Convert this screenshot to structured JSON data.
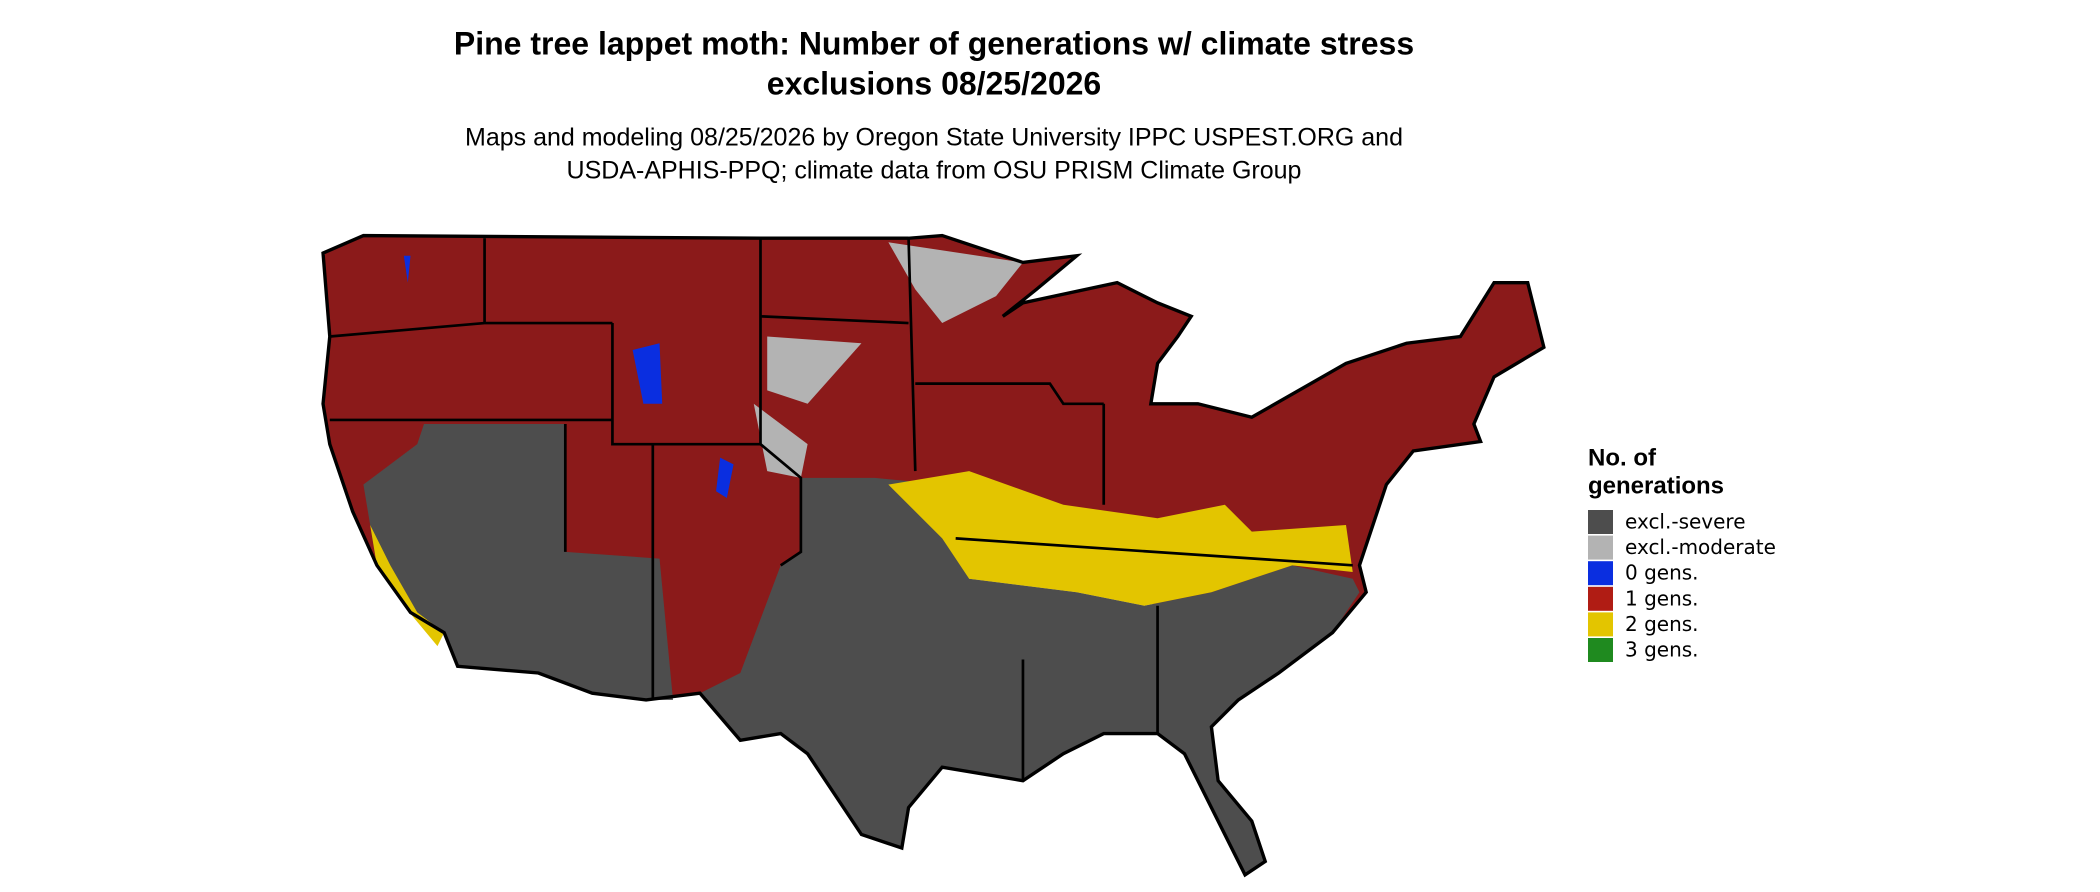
{
  "title": [
    "Pine tree lappet moth: Number of generations w/ climate stress",
    "exclusions 08/25/2026"
  ],
  "subtitle": [
    "Maps and modeling 08/25/2026 by Oregon State University IPPC USPEST.ORG and",
    "USDA-APHIS-PPQ; climate data from OSU PRISM Climate Group"
  ],
  "legend": {
    "title": [
      "No. of",
      "generations"
    ],
    "items": [
      {
        "label": "excl.-severe",
        "color": "#4d4d4d"
      },
      {
        "label": "excl.-moderate",
        "color": "#b3b3b3"
      },
      {
        "label": "0 gens.",
        "color": "#0a2ee0"
      },
      {
        "label": "1 gens.",
        "color": "#b01c14"
      },
      {
        "label": "2 gens.",
        "color": "#e3c500"
      },
      {
        "label": "3 gens.",
        "color": "#1f8a1f"
      }
    ]
  }
}
